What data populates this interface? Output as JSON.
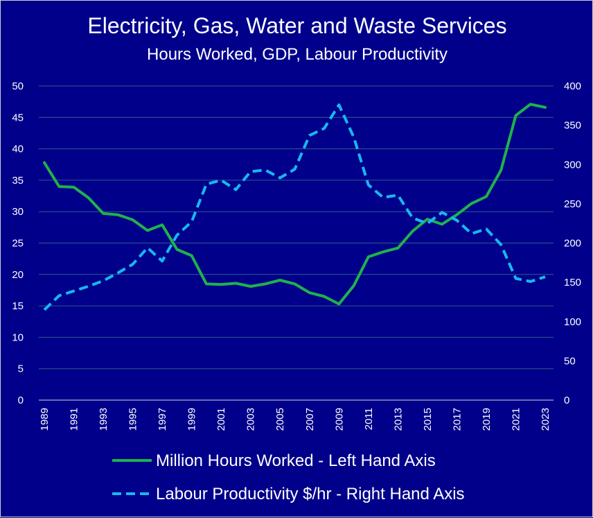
{
  "chart_data": {
    "type": "line",
    "title": "Electricity, Gas, Water and Waste Services",
    "subtitle": "Hours Worked, GDP, Labour Productivity",
    "x": [
      1989,
      1990,
      1991,
      1992,
      1993,
      1994,
      1995,
      1996,
      1997,
      1998,
      1999,
      2000,
      2001,
      2002,
      2003,
      2004,
      2005,
      2006,
      2007,
      2008,
      2009,
      2010,
      2011,
      2012,
      2013,
      2014,
      2015,
      2016,
      2017,
      2018,
      2019,
      2020,
      2021,
      2022,
      2023
    ],
    "x_tick_labels": [
      "1989",
      "1991",
      "1993",
      "1995",
      "1997",
      "1999",
      "2001",
      "2003",
      "2005",
      "2007",
      "2009",
      "2011",
      "2013",
      "2015",
      "2017",
      "2019",
      "2021",
      "2023"
    ],
    "y_left_ticks": [
      "0",
      "5",
      "10",
      "15",
      "20",
      "25",
      "30",
      "35",
      "40",
      "45",
      "50"
    ],
    "y_right_ticks": [
      "0",
      "50",
      "100",
      "150",
      "200",
      "250",
      "300",
      "350",
      "400"
    ],
    "ylim_left": [
      0,
      50
    ],
    "ylim_right": [
      0,
      400
    ],
    "grid": true,
    "legend_position": "bottom",
    "series": [
      {
        "name": "Million Hours Worked - Left Hand Axis",
        "axis": "left",
        "color": "#1fb24a",
        "style": "solid",
        "values": [
          37.8,
          34.0,
          33.9,
          32.2,
          29.7,
          29.5,
          28.7,
          27.0,
          27.9,
          24.0,
          23.0,
          18.5,
          18.4,
          18.6,
          18.1,
          18.5,
          19.1,
          18.5,
          17.1,
          16.5,
          15.3,
          18.2,
          22.8,
          23.6,
          24.2,
          26.9,
          28.8,
          28.0,
          29.5,
          31.3,
          32.4,
          36.6,
          45.3,
          47.1,
          46.6
        ]
      },
      {
        "name": "Labour Productivity $/hr - Right Hand Axis",
        "axis": "right",
        "color": "#17b8f0",
        "style": "dashed",
        "values": [
          115,
          133,
          139,
          145,
          152,
          162,
          173,
          194,
          177,
          210,
          227,
          275,
          280,
          268,
          291,
          293,
          283,
          294,
          337,
          346,
          376,
          335,
          274,
          258,
          261,
          232,
          225,
          239,
          229,
          212,
          218,
          198,
          155,
          151,
          157
        ]
      }
    ]
  }
}
